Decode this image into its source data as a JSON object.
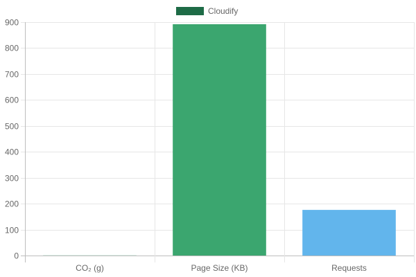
{
  "chart_data": {
    "type": "bar",
    "legend": {
      "position": "top",
      "entries": [
        {
          "label": "Cloudify",
          "color": "#1e6b46"
        }
      ]
    },
    "categories": [
      "CO₂ (g)",
      "Page Size (KB)",
      "Requests"
    ],
    "series": [
      {
        "name": "Cloudify",
        "values": [
          0.5,
          892,
          176
        ],
        "bar_colors": [
          "#3ba66f",
          "#3ba66f",
          "#62b5ec"
        ]
      }
    ],
    "ylim": [
      0,
      900
    ],
    "yticks": [
      "0",
      "100",
      "200",
      "300",
      "400",
      "500",
      "600",
      "700",
      "800",
      "900"
    ],
    "grid": true
  }
}
